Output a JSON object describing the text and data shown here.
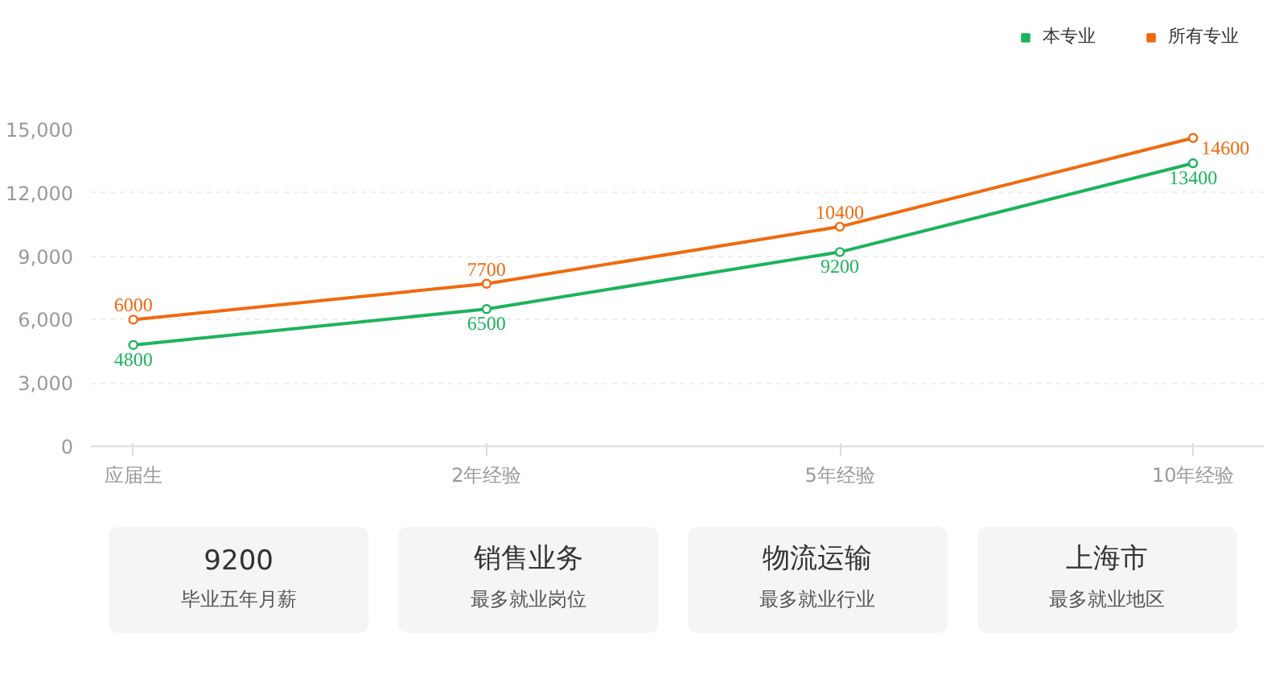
{
  "chart_data": [
    {
      "type": "line",
      "categories": [
        "应届生",
        "2年经验",
        "5年经验",
        "10年经验"
      ],
      "series": [
        {
          "name": "本专业",
          "color": "#1db35c",
          "values": [
            4800,
            6500,
            9200,
            13400
          ]
        },
        {
          "name": "所有专业",
          "color": "#f06a0f",
          "values": [
            6000,
            7700,
            10400,
            14600
          ]
        }
      ],
      "ylim": [
        0,
        15000
      ],
      "yticks": [
        0,
        {
          "value": 3000,
          "label": "3,000"
        },
        {
          "value": 6000,
          "label": "6,000"
        },
        {
          "value": 9000,
          "label": "9,000"
        },
        {
          "value": 12000,
          "label": "12,000"
        },
        {
          "value": 15000,
          "label": "15,000"
        }
      ],
      "grid": "y",
      "legend": "top right",
      "marker": "circle",
      "line_style": "solid",
      "data_labels": true
    },
    {
      "type": "other",
      "annotations": [
        "9200",
        "毕业五年月薪",
        "销售业务",
        "最多就业岗位",
        "物流运输",
        "最多就业行业",
        "上海市",
        "最多就业地区"
      ]
    }
  ]
}
